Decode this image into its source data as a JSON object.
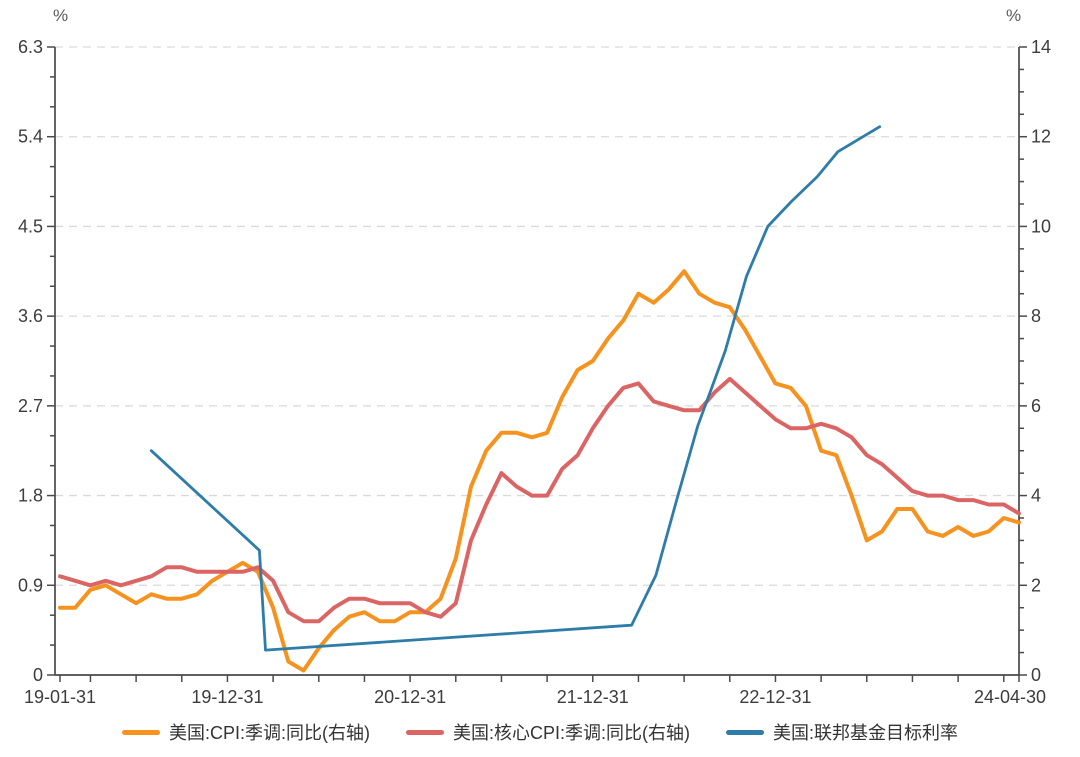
{
  "chart_data": {
    "type": "line",
    "title": "",
    "y_left": {
      "unit": "%",
      "min": 0,
      "max": 6.3,
      "major_step": 0.9,
      "minor_step": 0.3,
      "tick_labels": [
        "0",
        "0.9",
        "1.8",
        "2.7",
        "3.6",
        "4.5",
        "5.4",
        "6.3"
      ]
    },
    "y_right": {
      "unit": "%",
      "min": 0,
      "max": 14,
      "major_step": 2,
      "minor_step": 0.5,
      "tick_labels": [
        "0",
        "2",
        "4",
        "6",
        "8",
        "10",
        "12",
        "14"
      ]
    },
    "x_axis": {
      "start_month": "2019-01",
      "end_month": "2024-04",
      "total_months": 63,
      "labeled_ticks": [
        {
          "month": 0,
          "label": "19-01-31"
        },
        {
          "month": 11,
          "label": "19-12-31"
        },
        {
          "month": 23,
          "label": "20-12-31"
        },
        {
          "month": 35,
          "label": "21-12-31"
        },
        {
          "month": 47,
          "label": "22-12-31"
        },
        {
          "month": 63,
          "label": "24-04-30"
        }
      ],
      "minor_tick_every_months": 3
    },
    "grid": {
      "horizontal": true,
      "style": "dashed",
      "color": "#d9d9d9"
    },
    "legend_position": "bottom-center",
    "series": [
      {
        "name": "美国:CPI:季调:同比(右轴)",
        "color": "#F6921E",
        "axis": "right",
        "sampling": "monthly",
        "values": [
          1.5,
          1.5,
          1.9,
          2.0,
          1.8,
          1.6,
          1.8,
          1.7,
          1.7,
          1.8,
          2.1,
          2.3,
          2.5,
          2.3,
          1.5,
          0.3,
          0.1,
          0.6,
          1.0,
          1.3,
          1.4,
          1.2,
          1.2,
          1.4,
          1.4,
          1.7,
          2.6,
          4.2,
          5.0,
          5.4,
          5.4,
          5.3,
          5.4,
          6.2,
          6.8,
          7.0,
          7.5,
          7.9,
          8.5,
          8.3,
          8.6,
          9.0,
          8.5,
          8.3,
          8.2,
          7.7,
          7.1,
          6.5,
          6.4,
          6.0,
          5.0,
          4.9,
          4.0,
          3.0,
          3.2,
          3.7,
          3.7,
          3.2,
          3.1,
          3.3,
          3.1,
          3.2,
          3.5,
          3.4
        ]
      },
      {
        "name": "美国:核心CPI:季调:同比(右轴)",
        "color": "#DB6565",
        "axis": "right",
        "sampling": "monthly",
        "values": [
          2.2,
          2.1,
          2.0,
          2.1,
          2.0,
          2.1,
          2.2,
          2.4,
          2.4,
          2.3,
          2.3,
          2.3,
          2.3,
          2.4,
          2.1,
          1.4,
          1.2,
          1.2,
          1.5,
          1.7,
          1.7,
          1.6,
          1.6,
          1.6,
          1.4,
          1.3,
          1.6,
          3.0,
          3.8,
          4.5,
          4.2,
          4.0,
          4.0,
          4.6,
          4.9,
          5.5,
          6.0,
          6.4,
          6.5,
          6.1,
          6.0,
          5.9,
          5.9,
          6.3,
          6.6,
          6.3,
          6.0,
          5.7,
          5.5,
          5.5,
          5.6,
          5.5,
          5.3,
          4.9,
          4.7,
          4.4,
          4.1,
          4.0,
          4.0,
          3.9,
          3.9,
          3.8,
          3.8,
          3.6
        ]
      },
      {
        "name": "美国:联邦基金目标利率",
        "color": "#2E7CA9",
        "axis": "left",
        "sampling": "event-points-month-offset-value",
        "points": [
          [
            6.0,
            2.25
          ],
          [
            13.1,
            1.25
          ],
          [
            13.5,
            0.25
          ],
          [
            37.55,
            0.5
          ],
          [
            39.15,
            1.0
          ],
          [
            40.5,
            1.75
          ],
          [
            41.9,
            2.5
          ],
          [
            43.7,
            3.25
          ],
          [
            45.1,
            4.0
          ],
          [
            46.5,
            4.5
          ],
          [
            48.05,
            4.75
          ],
          [
            49.75,
            5.0
          ],
          [
            51.1,
            5.25
          ],
          [
            53.85,
            5.5
          ]
        ]
      }
    ]
  },
  "style_colors": {
    "axis_line": "#4a4a4a",
    "tick_label": "#3d3d3d",
    "unit_label": "#595959",
    "gridline": "#d9d9d9",
    "background": "#ffffff"
  }
}
